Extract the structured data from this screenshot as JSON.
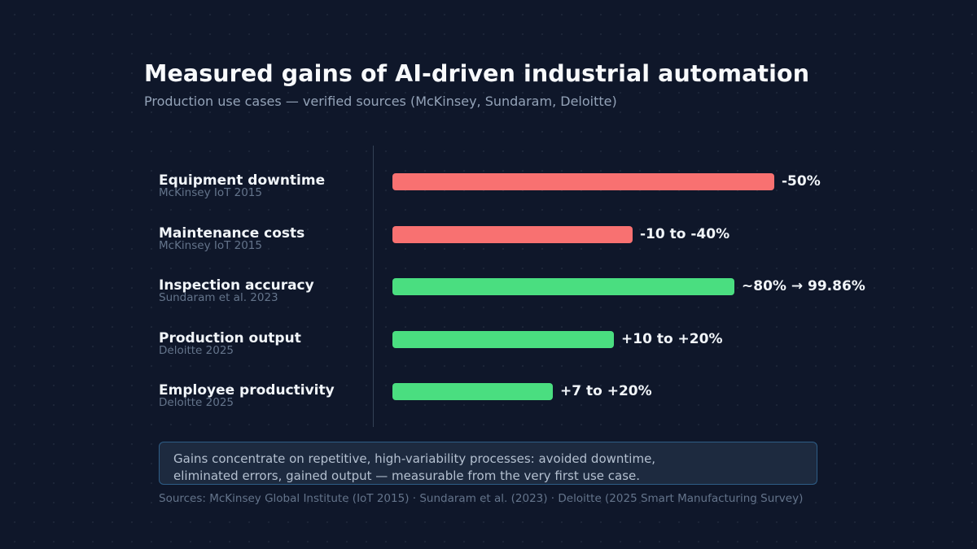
{
  "title": "Measured gains of AI-driven industrial automation",
  "subtitle": "Production use cases — verified sources (McKinsey, Sundaram, Deloitte)",
  "colors": {
    "background": "#0f172a",
    "negative": "#f87171",
    "positive": "#4ade80",
    "note_border": "#2e5d86",
    "note_background": "#1d2a3f"
  },
  "chart_data": {
    "type": "bar",
    "orientation": "horizontal",
    "title": "Measured gains of AI-driven industrial automation",
    "subtitle": "Production use cases — verified sources (McKinsey, Sundaram, Deloitte)",
    "categories": [
      "Equipment downtime",
      "Maintenance costs",
      "Inspection accuracy",
      "Production output",
      "Employee productivity"
    ],
    "sources": [
      "McKinsey IoT 2015",
      "McKinsey IoT 2015",
      "Sundaram et al. 2023",
      "Deloitte 2025",
      "Deloitte 2025"
    ],
    "value_labels": [
      "-50%",
      "-10 to -40%",
      "~80% → 99.86%",
      "+10 to +20%",
      "+7 to +20%"
    ],
    "values": [
      50,
      40,
      45,
      20,
      20
    ],
    "bar_fill_fraction": [
      1.0,
      0.63,
      0.895,
      0.58,
      0.42
    ],
    "series_colors": [
      "#f87171",
      "#f87171",
      "#4ade80",
      "#4ade80",
      "#4ade80"
    ],
    "grid": false,
    "legend": false
  },
  "note": {
    "lines": [
      "Gains concentrate on repetitive, high-variability processes: avoided downtime,",
      "eliminated errors, gained output — measurable from the very first use case."
    ]
  },
  "sources_line": "Sources: McKinsey Global Institute (IoT 2015) · Sundaram et al. (2023) · Deloitte (2025 Smart Manufacturing Survey)"
}
